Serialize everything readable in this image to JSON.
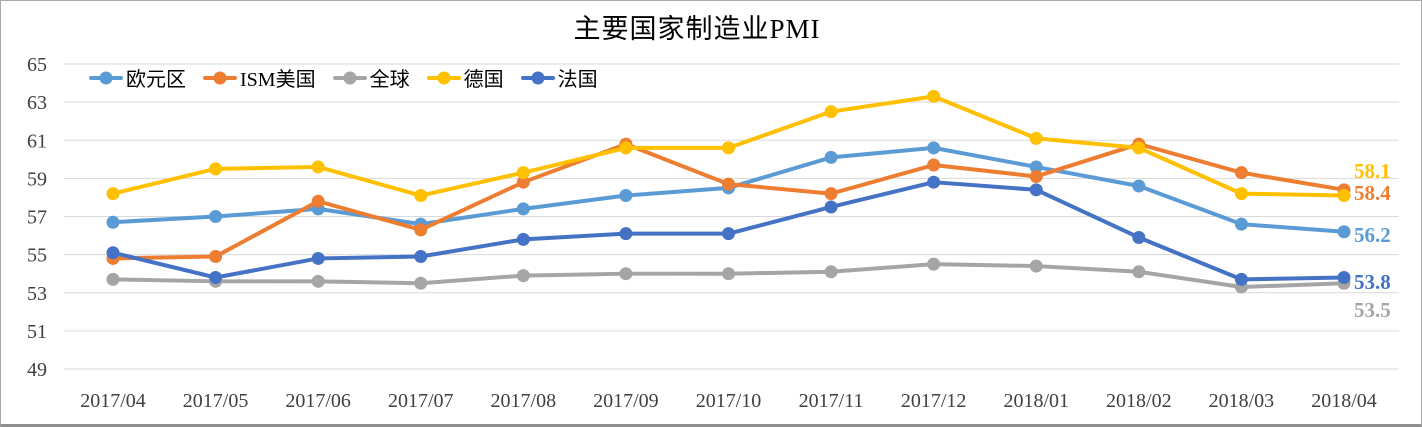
{
  "chart_data": {
    "type": "line",
    "title": "主要国家制造业PMI",
    "categories": [
      "2017/04",
      "2017/05",
      "2017/06",
      "2017/07",
      "2017/08",
      "2017/09",
      "2017/10",
      "2017/11",
      "2017/12",
      "2018/01",
      "2018/02",
      "2018/03",
      "2018/04"
    ],
    "series": [
      {
        "name": "欧元区",
        "color": "#5B9BD5",
        "values": [
          56.7,
          57.0,
          57.4,
          56.6,
          57.4,
          58.1,
          58.5,
          60.1,
          60.6,
          59.6,
          58.6,
          56.6,
          56.2
        ],
        "end_label": "56.2"
      },
      {
        "name": "ISM美国",
        "color": "#ED7D31",
        "values": [
          54.8,
          54.9,
          57.8,
          56.3,
          58.8,
          60.8,
          58.7,
          58.2,
          59.7,
          59.1,
          60.8,
          59.3,
          58.4
        ],
        "end_label": "58.4"
      },
      {
        "name": "全球",
        "color": "#A5A5A5",
        "values": [
          53.7,
          53.6,
          53.6,
          53.5,
          53.9,
          54.0,
          54.0,
          54.1,
          54.5,
          54.4,
          54.1,
          53.3,
          53.5
        ],
        "end_label": "53.5"
      },
      {
        "name": "德国",
        "color": "#FFC000",
        "values": [
          58.2,
          59.5,
          59.6,
          58.1,
          59.3,
          60.6,
          60.6,
          62.5,
          63.3,
          61.1,
          60.6,
          58.2,
          58.1
        ],
        "end_label": "58.1"
      },
      {
        "name": "法国",
        "color": "#4472C4",
        "values": [
          55.1,
          53.8,
          54.8,
          54.9,
          55.8,
          56.1,
          56.1,
          57.5,
          58.8,
          58.4,
          55.9,
          53.7,
          53.8
        ],
        "end_label": "53.8"
      }
    ],
    "y_axis": {
      "min": 49,
      "max": 65,
      "step": 2,
      "ticks": [
        65,
        63,
        61,
        59,
        57,
        55,
        53,
        51,
        49
      ]
    },
    "x_axis": {
      "label_format": "YYYY/MM"
    },
    "grid": "horizontal",
    "gridline_color": "#D9D9D9",
    "legend_position": "top",
    "marker": "circle"
  }
}
